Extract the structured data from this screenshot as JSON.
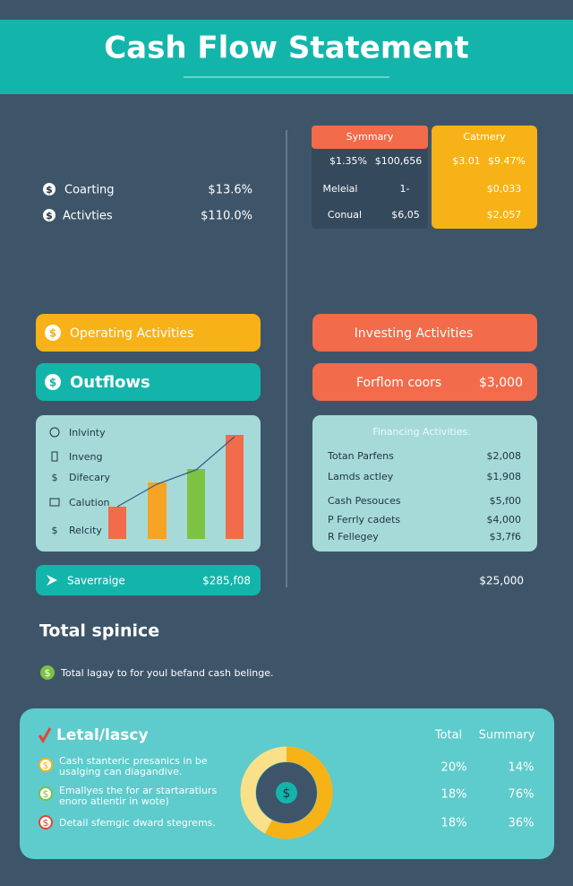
{
  "header": {
    "title": "Cash Flow Statement"
  },
  "overview": [
    {
      "label": "Coarting",
      "value": "$13.6%"
    },
    {
      "label": "Activties",
      "value": "$110.0%"
    }
  ],
  "summary": {
    "title": "Symmary",
    "rows": [
      [
        "$1.35%",
        "$100,656"
      ],
      [
        "Meleial",
        "1-"
      ],
      [
        "Conual",
        "$6,05"
      ]
    ]
  },
  "category": {
    "title": "Catmery",
    "rows": [
      [
        "$3.01",
        "$9.47%"
      ],
      [
        "$0,033"
      ],
      [
        "$2,057"
      ]
    ]
  },
  "buttons": {
    "operating": "Operating Activities",
    "outflows": "Outflows",
    "investing": "Investing Activities",
    "forflom": {
      "label": "Forflom coors",
      "value": "$3,000"
    }
  },
  "left_card": {
    "items": [
      "Inlvinty",
      "Inveng",
      "Difecary",
      "Calution",
      "Relcity"
    ]
  },
  "right_card": {
    "title": "Financing Activities.",
    "rows": [
      [
        "Totan Parfens",
        "$2,008"
      ],
      [
        "Lamds actley",
        "$1,908"
      ],
      [
        "Cash Pesouces",
        "$5,f00"
      ],
      [
        "P Ferrly cadets",
        "$4,000"
      ],
      [
        "R Fellegey",
        "$3,7f6"
      ]
    ]
  },
  "savings": {
    "label": "Saverraige",
    "value": "$285,f08"
  },
  "right_total": "$25,000",
  "total_section": {
    "title": "Total spinice",
    "note": "Total lagay to for youl befand cash belinge."
  },
  "bottom_card": {
    "title": "Letal/lascy",
    "items": [
      [
        "Cash stanteric presanics in be",
        "usalging can diagandive."
      ],
      [
        "Emallyes the for ar startaratiurs",
        "enoro atlentir in wote)"
      ],
      [
        "Detail sfemgic dward stegrems."
      ]
    ],
    "columns": [
      "Total",
      "Summary"
    ],
    "rows": [
      [
        "20%",
        "14%"
      ],
      [
        "18%",
        "76%"
      ],
      [
        "18%",
        "36%"
      ]
    ]
  }
}
